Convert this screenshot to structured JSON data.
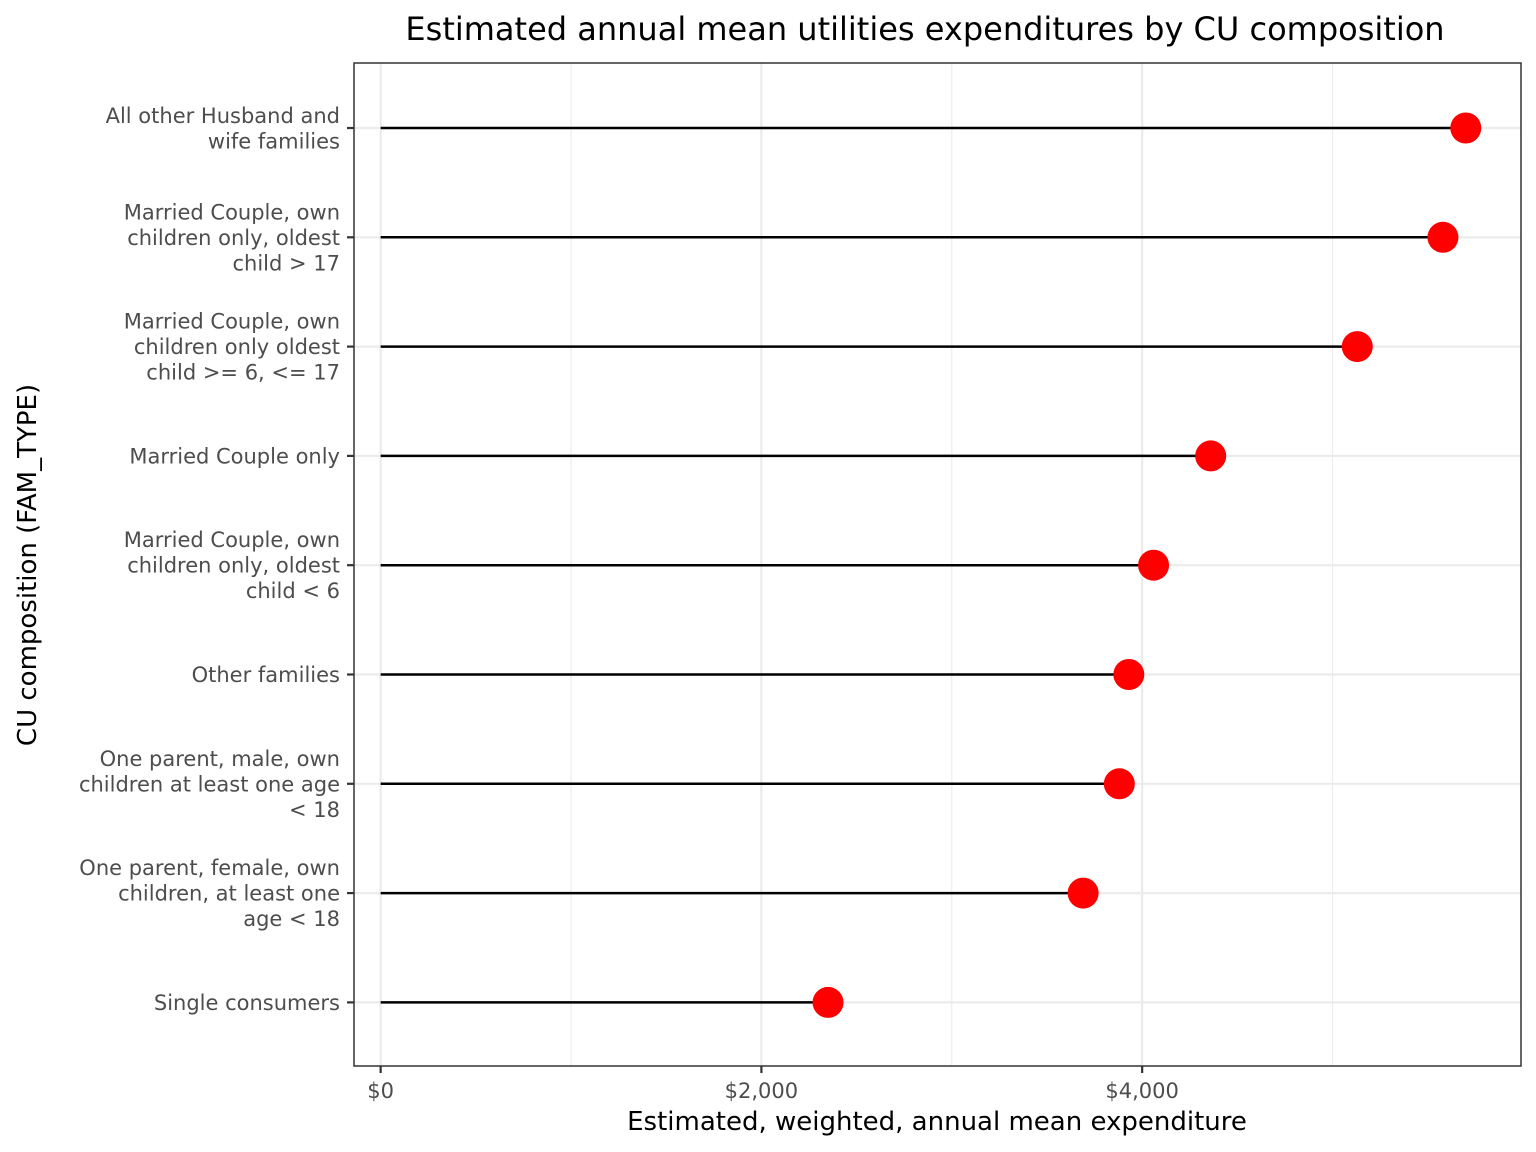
{
  "chart_data": {
    "type": "lollipop",
    "title": "Estimated annual mean utilities expenditures by CU composition",
    "xlabel": "Estimated, weighted, annual mean expenditure",
    "ylabel": "CU composition (FAM_TYPE)",
    "xlim": [
      -140,
      5990
    ],
    "x_ticks": [
      {
        "value": 0,
        "label": "$0"
      },
      {
        "value": 2000,
        "label": "$2,000"
      },
      {
        "value": 4000,
        "label": "$4,000"
      }
    ],
    "x_minor_ticks": [
      1000,
      3000,
      5000
    ],
    "grid": true,
    "legend": "none",
    "point_color": "#ff0000",
    "stem_color": "#000000",
    "categories": [
      {
        "label": [
          "All other Husband and",
          "wife families"
        ],
        "value": 5700
      },
      {
        "label": [
          "Married Couple, own",
          "children only, oldest",
          "child > 17"
        ],
        "value": 5580
      },
      {
        "label": [
          "Married Couple, own",
          "children only oldest",
          "child >= 6, <= 17"
        ],
        "value": 5130
      },
      {
        "label": [
          "Married Couple only"
        ],
        "value": 4360
      },
      {
        "label": [
          "Married Couple, own",
          "children only, oldest",
          "child < 6"
        ],
        "value": 4060
      },
      {
        "label": [
          "Other families"
        ],
        "value": 3930
      },
      {
        "label": [
          "One parent, male, own",
          "children at least one age",
          "< 18"
        ],
        "value": 3880
      },
      {
        "label": [
          "One parent, female, own",
          "children, at least one",
          "age < 18"
        ],
        "value": 3690
      },
      {
        "label": [
          "Single consumers"
        ],
        "value": 2350
      }
    ]
  }
}
